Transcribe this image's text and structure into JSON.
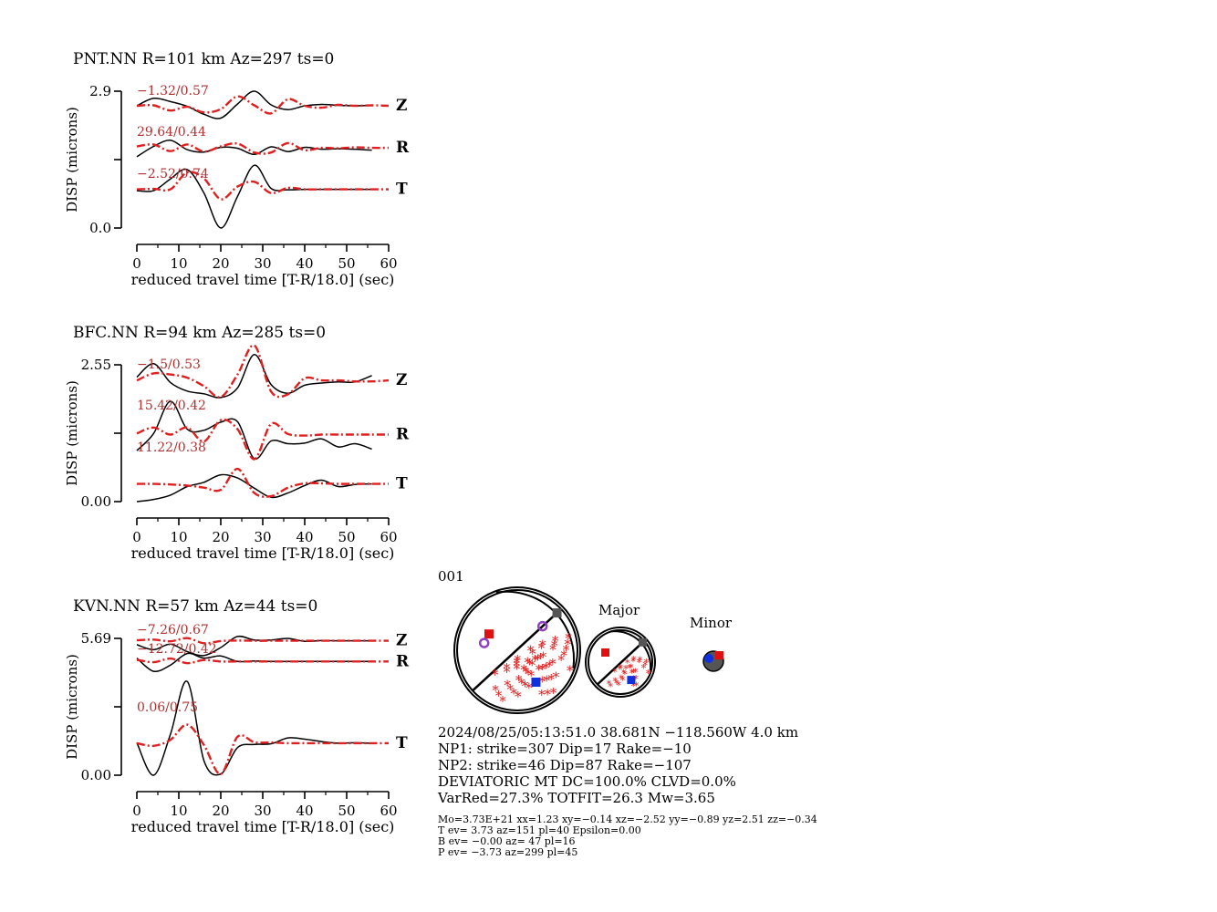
{
  "colors": {
    "observed": "#000000",
    "synthetic": "#e02020",
    "ratio_text": "#b03030",
    "compression": "#e02020",
    "p_axis": "#1030e0",
    "t_axis": "#e01010",
    "null_axis": "#555555",
    "station_marker": "#9040c0"
  },
  "stations": [
    {
      "title": "PNT.NN R=101 km Az=297 ts=0",
      "ylabel": "DISP (microns)",
      "ytick_top": "2.9",
      "ytick_bottom": "0.0",
      "xlabel": "reduced travel time [T-R/18.0] (sec)",
      "xticks": [
        "0",
        "10",
        "20",
        "30",
        "40",
        "50",
        "60"
      ],
      "components": [
        {
          "name": "Z",
          "ratio": "−1.32/0.57"
        },
        {
          "name": "R",
          "ratio": "29.64/0.44"
        },
        {
          "name": "T",
          "ratio": "−2.52/0.74"
        }
      ]
    },
    {
      "title": "BFC.NN R=94 km Az=285 ts=0",
      "ylabel": "DISP (microns)",
      "ytick_top": "2.55",
      "ytick_bottom": "0.00",
      "xlabel": "reduced travel time [T-R/18.0] (sec)",
      "xticks": [
        "0",
        "10",
        "20",
        "30",
        "40",
        "50",
        "60"
      ],
      "components": [
        {
          "name": "Z",
          "ratio": "−1.5/0.53"
        },
        {
          "name": "R",
          "ratio": "15.42/0.42"
        },
        {
          "name": "T",
          "ratio": "11.22/0.38"
        }
      ]
    },
    {
      "title": "KVN.NN R=57 km Az=44 ts=0",
      "ylabel": "DISP (microns)",
      "ytick_top": "5.69",
      "ytick_bottom": "0.00",
      "xlabel": "reduced travel time [T-R/18.0] (sec)",
      "xticks": [
        "0",
        "10",
        "20",
        "30",
        "40",
        "50",
        "60"
      ],
      "components": [
        {
          "name": "Z",
          "ratio": "−7.26/0.67"
        },
        {
          "name": "R",
          "ratio": "−12.72/0.42"
        },
        {
          "name": "T",
          "ratio": "0.06/0.75"
        }
      ]
    }
  ],
  "chart_data": [
    {
      "type": "line",
      "station": "PNT.NN",
      "x_unit": "sec",
      "y_unit": "microns",
      "xlim": [
        0,
        60
      ],
      "ylim": [
        0.0,
        2.9
      ],
      "traces": [
        {
          "component": "Z",
          "series": [
            {
              "kind": "observed",
              "x": [
                0,
                4,
                8,
                12,
                16,
                20,
                24,
                28,
                32,
                36,
                40,
                44,
                48,
                52,
                56
              ],
              "y": [
                2.59,
                2.75,
                2.68,
                2.58,
                2.41,
                2.33,
                2.63,
                2.9,
                2.61,
                2.51,
                2.59,
                2.62,
                2.6,
                2.59,
                2.6
              ]
            },
            {
              "kind": "synthetic",
              "x": [
                0,
                4,
                8,
                12,
                16,
                20,
                24,
                28,
                32,
                36,
                40,
                44,
                48,
                52,
                56,
                60
              ],
              "y": [
                2.59,
                2.6,
                2.49,
                2.57,
                2.45,
                2.52,
                2.79,
                2.6,
                2.43,
                2.73,
                2.59,
                2.55,
                2.61,
                2.59,
                2.6,
                2.59
              ]
            }
          ]
        },
        {
          "component": "R",
          "series": [
            {
              "kind": "observed",
              "x": [
                0,
                4,
                8,
                12,
                16,
                20,
                24,
                28,
                32,
                36,
                40,
                44,
                48,
                52,
                56
              ],
              "y": [
                1.51,
                1.73,
                1.86,
                1.66,
                1.61,
                1.71,
                1.69,
                1.56,
                1.72,
                1.62,
                1.71,
                1.67,
                1.68,
                1.67,
                1.65
              ]
            },
            {
              "kind": "synthetic",
              "x": [
                0,
                4,
                8,
                12,
                16,
                20,
                24,
                28,
                32,
                36,
                40,
                44,
                48,
                52,
                56,
                60
              ],
              "y": [
                1.73,
                1.77,
                1.63,
                1.77,
                1.62,
                1.73,
                1.79,
                1.6,
                1.6,
                1.8,
                1.65,
                1.7,
                1.69,
                1.71,
                1.7,
                1.7
              ]
            }
          ]
        },
        {
          "component": "T",
          "series": [
            {
              "kind": "observed",
              "x": [
                0,
                4,
                8,
                12,
                16,
                20,
                24,
                28,
                32,
                36,
                40,
                44,
                48,
                52,
                56
              ],
              "y": [
                0.79,
                0.79,
                1.04,
                1.24,
                0.74,
                0.0,
                0.67,
                1.33,
                0.84,
                0.81,
                0.82,
                0.82,
                0.82,
                0.82,
                0.82
              ]
            },
            {
              "kind": "synthetic",
              "x": [
                0,
                4,
                8,
                12,
                16,
                20,
                24,
                28,
                32,
                36,
                40,
                44,
                48,
                52,
                56,
                60
              ],
              "y": [
                0.82,
                0.83,
                0.82,
                1.18,
                1.05,
                0.61,
                0.88,
                0.98,
                0.74,
                0.85,
                0.82,
                0.82,
                0.82,
                0.82,
                0.82,
                0.82
              ]
            }
          ]
        }
      ]
    },
    {
      "type": "line",
      "station": "BFC.NN",
      "x_unit": "sec",
      "y_unit": "microns",
      "xlim": [
        0,
        60
      ],
      "ylim": [
        0.0,
        2.55
      ],
      "traces": [
        {
          "component": "Z",
          "series": [
            {
              "kind": "observed",
              "x": [
                0,
                4,
                8,
                12,
                16,
                20,
                24,
                28,
                32,
                36,
                40,
                44,
                48,
                52,
                56
              ],
              "y": [
                2.32,
                2.57,
                2.22,
                2.06,
                2.01,
                1.94,
                2.12,
                2.74,
                2.18,
                2.02,
                2.17,
                2.21,
                2.23,
                2.23,
                2.35
              ]
            },
            {
              "kind": "synthetic",
              "x": [
                0,
                4,
                8,
                12,
                16,
                20,
                24,
                28,
                32,
                36,
                40,
                44,
                48,
                52,
                56,
                60
              ],
              "y": [
                2.26,
                2.39,
                2.37,
                2.31,
                2.15,
                1.95,
                2.37,
                2.91,
                2.05,
                2.0,
                2.3,
                2.26,
                2.26,
                2.24,
                2.24,
                2.26
              ]
            }
          ]
        },
        {
          "component": "R",
          "series": [
            {
              "kind": "observed",
              "x": [
                0,
                4,
                8,
                12,
                16,
                20,
                24,
                28,
                32,
                36,
                40,
                44,
                48,
                52,
                56
              ],
              "y": [
                0.95,
                1.27,
                1.87,
                1.35,
                1.33,
                1.48,
                1.49,
                0.8,
                1.13,
                1.08,
                1.09,
                1.17,
                1.02,
                1.08,
                0.98
              ]
            },
            {
              "kind": "synthetic",
              "x": [
                0,
                4,
                8,
                12,
                16,
                20,
                24,
                28,
                32,
                36,
                40,
                44,
                48,
                52,
                56,
                60
              ],
              "y": [
                1.27,
                1.38,
                1.25,
                1.38,
                1.12,
                1.52,
                1.35,
                0.79,
                1.45,
                1.26,
                1.23,
                1.25,
                1.25,
                1.25,
                1.25,
                1.25
              ]
            }
          ]
        },
        {
          "component": "T",
          "series": [
            {
              "kind": "observed",
              "x": [
                0,
                4,
                8,
                12,
                16,
                20,
                24,
                28,
                32,
                36,
                40,
                44,
                48,
                52,
                56
              ],
              "y": [
                0.0,
                0.04,
                0.12,
                0.28,
                0.36,
                0.5,
                0.44,
                0.25,
                0.08,
                0.16,
                0.3,
                0.4,
                0.28,
                0.32,
                0.33
              ]
            },
            {
              "kind": "synthetic",
              "x": [
                0,
                4,
                8,
                12,
                16,
                20,
                24,
                28,
                32,
                36,
                40,
                44,
                48,
                52,
                56,
                60
              ],
              "y": [
                0.33,
                0.33,
                0.32,
                0.3,
                0.26,
                0.22,
                0.61,
                0.16,
                0.1,
                0.26,
                0.34,
                0.34,
                0.33,
                0.33,
                0.33,
                0.33
              ]
            }
          ]
        }
      ]
    },
    {
      "type": "line",
      "station": "KVN.NN",
      "x_unit": "sec",
      "y_unit": "microns",
      "xlim": [
        0,
        60
      ],
      "ylim": [
        0.0,
        5.69
      ],
      "traces": [
        {
          "component": "Z",
          "series": [
            {
              "kind": "observed",
              "x": [
                0,
                4,
                8,
                12,
                16,
                20,
                24,
                28,
                32,
                36,
                40,
                44,
                48,
                52,
                56
              ],
              "y": [
                5.43,
                5.22,
                5.45,
                5.14,
                4.98,
                5.31,
                5.77,
                5.62,
                5.62,
                5.69,
                5.57,
                5.6,
                5.59,
                5.59,
                5.59
              ]
            },
            {
              "kind": "synthetic",
              "x": [
                0,
                4,
                8,
                12,
                16,
                20,
                24,
                28,
                32,
                36,
                40,
                44,
                48,
                52,
                56,
                60
              ],
              "y": [
                5.61,
                5.64,
                5.57,
                5.7,
                5.49,
                5.58,
                5.6,
                5.59,
                5.59,
                5.59,
                5.59,
                5.59,
                5.59,
                5.59,
                5.59,
                5.59
              ]
            }
          ]
        },
        {
          "component": "R",
          "series": [
            {
              "kind": "observed",
              "x": [
                0,
                4,
                8,
                12,
                16,
                20,
                24,
                28,
                32,
                36,
                40,
                44,
                48,
                52,
                56
              ],
              "y": [
                4.87,
                4.32,
                4.58,
                5.06,
                4.87,
                4.96,
                4.73,
                4.75,
                4.73,
                4.73,
                4.73,
                4.73,
                4.73,
                4.73,
                4.73
              ]
            },
            {
              "kind": "synthetic",
              "x": [
                0,
                4,
                8,
                12,
                16,
                20,
                24,
                28,
                32,
                36,
                40,
                44,
                48,
                52,
                56,
                60
              ],
              "y": [
                4.8,
                4.7,
                4.85,
                4.66,
                4.79,
                4.73,
                4.73,
                4.73,
                4.73,
                4.73,
                4.73,
                4.73,
                4.73,
                4.73,
                4.73,
                4.73
              ]
            }
          ]
        },
        {
          "component": "T",
          "series": [
            {
              "kind": "observed",
              "x": [
                0,
                4,
                8,
                12,
                16,
                20,
                24,
                28,
                32,
                36,
                40,
                44,
                48,
                52,
                56
              ],
              "y": [
                1.35,
                0.0,
                1.7,
                3.9,
                0.6,
                0.05,
                1.15,
                1.28,
                1.31,
                1.55,
                1.5,
                1.4,
                1.33,
                1.35,
                1.33
              ]
            },
            {
              "kind": "synthetic",
              "x": [
                0,
                4,
                8,
                12,
                16,
                20,
                24,
                28,
                32,
                36,
                40,
                44,
                48,
                52,
                56,
                60
              ],
              "y": [
                1.33,
                1.22,
                1.47,
                2.1,
                1.25,
                0.05,
                1.6,
                1.37,
                1.36,
                1.33,
                1.33,
                1.33,
                1.33,
                1.33,
                1.33,
                1.33
              ]
            }
          ]
        }
      ]
    }
  ],
  "mechanism": {
    "solution_number": "001",
    "major_label": "Major",
    "minor_label": "Minor",
    "np1": {
      "strike": 307,
      "dip": 17,
      "rake": -10
    },
    "np2": {
      "strike": 46,
      "dip": 87,
      "rake": -107
    }
  },
  "info": {
    "line1": "2024/08/25/05:13:51.0 38.681N −118.560W 4.0 km",
    "line2": "NP1: strike=307 Dip=17 Rake=−10",
    "line3": "NP2: strike=46 Dip=87 Rake=−107",
    "line4": "DEVIATORIC MT DC=100.0% CLVD=0.0%",
    "line5": "VarRed=27.3% TOTFIT=26.3 Mw=3.65",
    "small1": "Mo=3.73E+21 xx=1.23 xy=−0.14 xz=−2.52 yy=−0.89 yz=2.51 zz=−0.34",
    "small2": "T ev=  3.73 az=151 pl=40 Epsilon=0.00",
    "small3": "B ev= −0.00 az= 47 pl=16",
    "small4": "P ev= −3.73 az=299 pl=45"
  }
}
